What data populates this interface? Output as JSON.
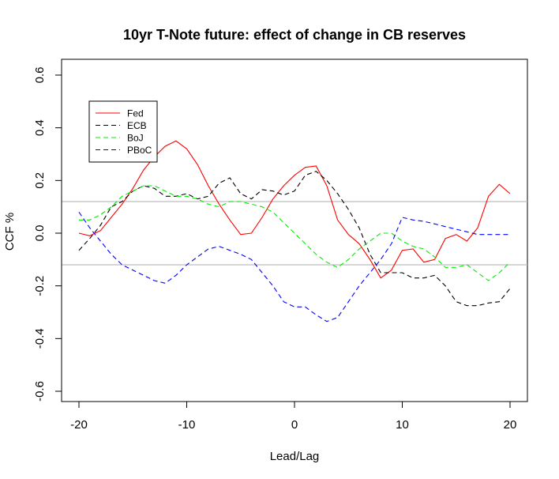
{
  "chart_data": {
    "type": "line",
    "title": "10yr T-Note future: effect of change in CB reserves",
    "xlabel": "Lead/Lag",
    "ylabel": "CCF %",
    "xlim": [
      -20,
      20
    ],
    "ylim": [
      -0.6,
      0.6
    ],
    "x_ticks": [
      -20,
      -10,
      0,
      10,
      20
    ],
    "x_tick_labels": [
      "-20",
      "-10",
      "0",
      "10",
      "20"
    ],
    "y_ticks": [
      -0.6,
      -0.4,
      -0.2,
      0.0,
      0.2,
      0.4,
      0.6
    ],
    "y_tick_labels": [
      "-0.6",
      "-0.4",
      "-0.2",
      "0.0",
      "0.2",
      "0.4",
      "0.6"
    ],
    "reference_lines": [
      0.12,
      -0.12
    ],
    "reference_color": "#bebebe",
    "legend_position": "top-left",
    "x": [
      -20,
      -19,
      -18,
      -17,
      -16,
      -15,
      -14,
      -13,
      -12,
      -11,
      -10,
      -9,
      -8,
      -7,
      -6,
      -5,
      -4,
      -3,
      -2,
      -1,
      0,
      1,
      2,
      3,
      4,
      5,
      6,
      7,
      8,
      9,
      10,
      11,
      12,
      13,
      14,
      15,
      16,
      17,
      18,
      19,
      20
    ],
    "series": [
      {
        "name": "Fed",
        "color": "#ff0000",
        "dash": "solid",
        "values": [
          0.0,
          -0.01,
          0.01,
          0.06,
          0.11,
          0.17,
          0.24,
          0.29,
          0.33,
          0.35,
          0.32,
          0.26,
          0.18,
          0.11,
          0.05,
          -0.005,
          0.0,
          0.06,
          0.13,
          0.18,
          0.22,
          0.25,
          0.255,
          0.18,
          0.05,
          -0.005,
          -0.04,
          -0.1,
          -0.17,
          -0.14,
          -0.065,
          -0.06,
          -0.11,
          -0.1,
          -0.02,
          -0.005,
          -0.03,
          0.02,
          0.14,
          0.185,
          0.15
        ]
      },
      {
        "name": "ECB",
        "color": "#000000",
        "dash": "6,4",
        "values": [
          -0.065,
          -0.02,
          0.03,
          0.1,
          0.12,
          0.16,
          0.18,
          0.17,
          0.14,
          0.14,
          0.15,
          0.13,
          0.14,
          0.19,
          0.21,
          0.15,
          0.13,
          0.165,
          0.16,
          0.145,
          0.16,
          0.22,
          0.235,
          0.2,
          0.15,
          0.09,
          0.02,
          -0.08,
          -0.15,
          -0.15,
          -0.15,
          -0.17,
          -0.17,
          -0.16,
          -0.2,
          -0.26,
          -0.275,
          -0.275,
          -0.265,
          -0.26,
          -0.21
        ]
      },
      {
        "name": "BoJ",
        "color": "#00ee00",
        "dash": "6,4",
        "values": [
          0.05,
          0.05,
          0.07,
          0.1,
          0.14,
          0.16,
          0.18,
          0.18,
          0.16,
          0.14,
          0.14,
          0.13,
          0.11,
          0.1,
          0.12,
          0.12,
          0.11,
          0.1,
          0.08,
          0.04,
          0.0,
          -0.04,
          -0.08,
          -0.11,
          -0.13,
          -0.1,
          -0.06,
          -0.03,
          0.0,
          0.0,
          -0.03,
          -0.05,
          -0.06,
          -0.09,
          -0.13,
          -0.13,
          -0.12,
          -0.15,
          -0.18,
          -0.15,
          -0.11
        ]
      },
      {
        "name": "PBoC",
        "color": "#0000ff",
        "dash": "6,4",
        "values": [
          0.08,
          0.02,
          -0.03,
          -0.08,
          -0.12,
          -0.14,
          -0.16,
          -0.18,
          -0.19,
          -0.16,
          -0.12,
          -0.09,
          -0.06,
          -0.05,
          -0.065,
          -0.08,
          -0.1,
          -0.15,
          -0.2,
          -0.26,
          -0.28,
          -0.28,
          -0.31,
          -0.335,
          -0.32,
          -0.26,
          -0.2,
          -0.15,
          -0.1,
          -0.04,
          0.06,
          0.05,
          0.045,
          0.035,
          0.025,
          0.015,
          0.005,
          -0.005,
          -0.005,
          -0.005,
          -0.005
        ]
      }
    ]
  }
}
